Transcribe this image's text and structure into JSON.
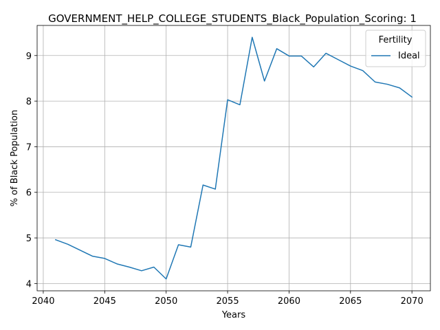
{
  "chart_data": {
    "type": "line",
    "title": "GOVERNMENT_HELP_COLLEGE_STUDENTS_Black_Population_Scoring: 1",
    "xlabel": "Years",
    "ylabel": "% of Black Population",
    "xlim": [
      2039.5,
      2071.5
    ],
    "ylim": [
      3.84,
      9.66
    ],
    "xticks": [
      2040,
      2045,
      2050,
      2055,
      2060,
      2065,
      2070
    ],
    "yticks": [
      4,
      5,
      6,
      7,
      8,
      9
    ],
    "grid": true,
    "legend": {
      "title": "Fertility",
      "placement": "top-right"
    },
    "series": [
      {
        "name": "Ideal",
        "color": "#1f77b4",
        "x": [
          2041,
          2042,
          2043,
          2044,
          2045,
          2046,
          2047,
          2048,
          2049,
          2050,
          2051,
          2052,
          2053,
          2054,
          2055,
          2056,
          2057,
          2058,
          2059,
          2060,
          2061,
          2062,
          2063,
          2064,
          2065,
          2066,
          2067,
          2068,
          2069,
          2070
        ],
        "y": [
          4.96,
          4.86,
          4.73,
          4.6,
          4.55,
          4.43,
          4.36,
          4.28,
          4.36,
          4.1,
          4.85,
          4.8,
          6.16,
          6.07,
          8.03,
          7.92,
          9.4,
          8.44,
          9.15,
          8.99,
          8.99,
          8.75,
          9.05,
          8.91,
          8.77,
          8.67,
          8.42,
          8.37,
          8.29,
          8.09
        ]
      }
    ]
  }
}
